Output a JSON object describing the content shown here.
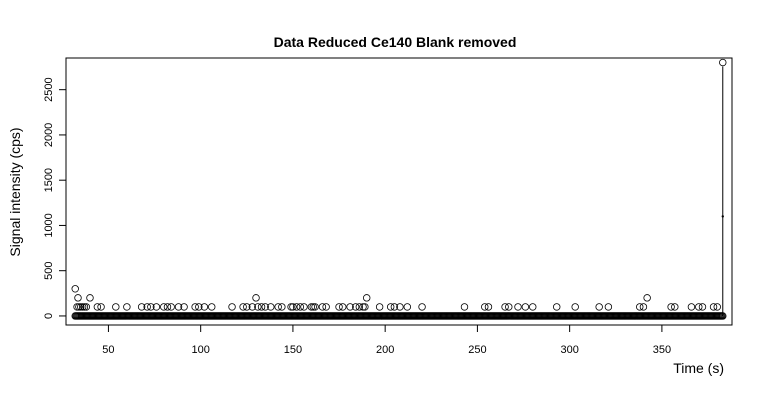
{
  "chart_data": {
    "type": "scatter",
    "title": "Data Reduced Ce140 Blank removed",
    "xlabel": "Time (s)",
    "ylabel": "Signal intensity (cps)",
    "xlim": [
      27,
      388
    ],
    "ylim": [
      -100,
      2850
    ],
    "xticks": [
      50,
      100,
      150,
      200,
      250,
      300,
      350
    ],
    "yticks": [
      0,
      500,
      1000,
      1500,
      2000,
      2500
    ],
    "grid": false,
    "legend": "none",
    "marker": "open-circle",
    "baseline_run": {
      "x_start": 32,
      "x_end": 383,
      "y": 0
    },
    "points": {
      "x": [
        32,
        33,
        33.5,
        34,
        35,
        36,
        37,
        38,
        40,
        44,
        46,
        54,
        60,
        68,
        71,
        73,
        76,
        80,
        82,
        84,
        88,
        91,
        97,
        99,
        102,
        106,
        117,
        123,
        125,
        128,
        130,
        131,
        133,
        135,
        138,
        142,
        144,
        149,
        150,
        152,
        154,
        156,
        160,
        161,
        162,
        166,
        168,
        175,
        177,
        181,
        184,
        186,
        188,
        189,
        190,
        197,
        203,
        205,
        208,
        212,
        220,
        243,
        254,
        256,
        265,
        267,
        272,
        276,
        280,
        293,
        303,
        316,
        321,
        338,
        340,
        342,
        355,
        357,
        366,
        370,
        372,
        378,
        380
      ],
      "y": [
        300,
        100,
        200,
        100,
        100,
        100,
        100,
        100,
        200,
        100,
        100,
        100,
        100,
        100,
        100,
        100,
        100,
        100,
        100,
        100,
        100,
        100,
        100,
        100,
        100,
        100,
        100,
        100,
        100,
        100,
        200,
        100,
        100,
        100,
        100,
        100,
        100,
        100,
        100,
        100,
        100,
        100,
        100,
        100,
        100,
        100,
        100,
        100,
        100,
        100,
        100,
        100,
        100,
        100,
        200,
        100,
        100,
        100,
        100,
        100,
        100,
        100,
        100,
        100,
        100,
        100,
        100,
        100,
        100,
        100,
        100,
        100,
        100,
        100,
        100,
        200,
        100,
        100,
        100,
        100,
        100,
        100,
        100
      ]
    },
    "spike": {
      "x": 383,
      "y_low": 0,
      "y_high": 2800,
      "y_mid": 1100
    }
  }
}
